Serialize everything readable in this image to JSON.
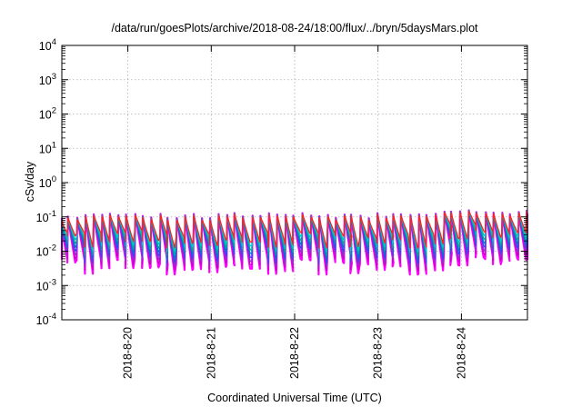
{
  "chart_data": {
    "type": "line",
    "title": "/data/run/goesPlots/archive/2018-08-24/18:00/flux/../bryn/5daysMars.plot",
    "xlabel": "Coordinated Universal Time (UTC)",
    "ylabel": "cSv/day",
    "yscale": "log",
    "ylim": [
      0.0001,
      10000
    ],
    "yticks": [
      {
        "value": 0.0001,
        "base": "10",
        "exp": "-4"
      },
      {
        "value": 0.001,
        "base": "10",
        "exp": "-3"
      },
      {
        "value": 0.01,
        "base": "10",
        "exp": "-2"
      },
      {
        "value": 0.1,
        "base": "10",
        "exp": "-1"
      },
      {
        "value": 1,
        "base": "10",
        "exp": "0"
      },
      {
        "value": 10,
        "base": "10",
        "exp": "1"
      },
      {
        "value": 100,
        "base": "10",
        "exp": "2"
      },
      {
        "value": 1000,
        "base": "10",
        "exp": "3"
      },
      {
        "value": 10000,
        "base": "10",
        "exp": "4"
      }
    ],
    "xlim": [
      "2018-08-19 05:00",
      "2018-08-24 19:00"
    ],
    "xticks": [
      "2018-8-20",
      "2018-8-21",
      "2018-8-22",
      "2018-8-23",
      "2018-8-24"
    ],
    "xtick_dates": [
      "2018-08-20",
      "2018-08-21",
      "2018-08-22",
      "2018-08-23",
      "2018-08-24"
    ],
    "grid": true,
    "legend": "none",
    "colors": [
      "#ff00ff",
      "#cc00cc",
      "#8833cc",
      "#3344ff",
      "#0077cc",
      "#00aa99",
      "#00c8c8",
      "#ff2020"
    ],
    "pattern": {
      "period_hours": 2.4,
      "peak_range": [
        0.09,
        0.13
      ],
      "trough_range": [
        0.002,
        0.006
      ]
    }
  }
}
